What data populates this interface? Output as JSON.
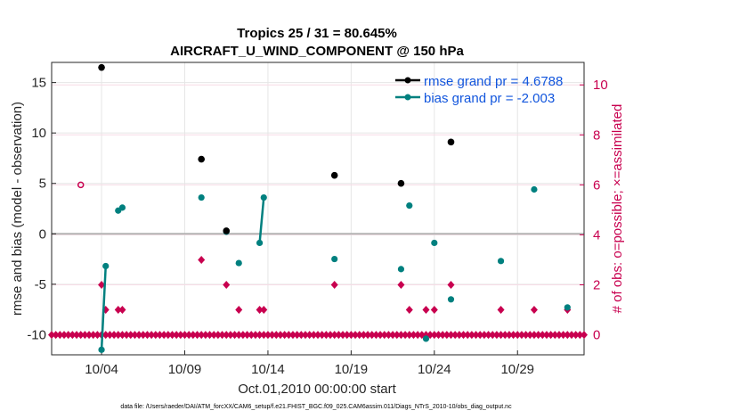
{
  "chart_data": {
    "type": "scatter",
    "title_line1": "Tropics 25 / 31 = 80.645%",
    "title_line2": "AIRCRAFT_U_WIND_COMPONENT @ 150 hPa",
    "xlabel": "Oct.01,2010 00:00:00 start",
    "ylabel": "rmse and bias (model - observation)",
    "y2label": "# of obs: o=possible; ×=assimilated",
    "footer": "data file: /Users/raeder/DAI/ATM_forcXX/CAM6_setup/f.e21.FHIST_BGC.f09_025.CAM6assim.011/Diags_NTrS_2010-10/obs_diag_output.nc",
    "xlim": [
      1,
      33
    ],
    "ylim": [
      -12,
      17
    ],
    "y2lim": [
      -0.8,
      10.9
    ],
    "xticks": [
      4,
      9,
      14,
      19,
      24,
      29
    ],
    "xtick_labels": [
      "10/04",
      "10/09",
      "10/14",
      "10/19",
      "10/24",
      "10/29"
    ],
    "yticks": [
      -10,
      -5,
      0,
      5,
      10,
      15
    ],
    "ytick_labels": [
      "-10",
      "-5",
      "0",
      "5",
      "10",
      "15"
    ],
    "y2ticks": [
      0,
      2,
      4,
      6,
      8,
      10
    ],
    "y2tick_labels": [
      "0",
      "2",
      "4",
      "6",
      "8",
      "10"
    ],
    "grid": true,
    "legend_placement": "top-right",
    "colors": {
      "rmse": "#000000",
      "bias": "#00807f",
      "obs": "#c8004f",
      "zero_line": "#b3b3b3",
      "legend_text": "#1155dd"
    },
    "series": [
      {
        "name": "rmse grand pr = 4.6788",
        "x": [
          4.0,
          10.0,
          11.5,
          18.0,
          22.0,
          25.0
        ],
        "y": [
          16.5,
          7.4,
          0.3,
          5.8,
          5.0,
          9.1
        ]
      },
      {
        "name": "bias grand pr = -2.003",
        "x": [
          4.0,
          4.25,
          5.0,
          5.25,
          10.0,
          11.5,
          12.25,
          13.5,
          13.75,
          18.0,
          22.0,
          22.5,
          23.5,
          24.0,
          25.0,
          28.0,
          30.0,
          32.0
        ],
        "y": [
          -11.5,
          -3.2,
          2.3,
          2.6,
          3.6,
          0.2,
          -2.9,
          -0.9,
          3.6,
          -2.5,
          -3.5,
          2.8,
          -10.4,
          -0.9,
          -6.5,
          -2.7,
          4.4,
          -7.3
        ],
        "segments": [
          [
            4.0,
            4.25
          ],
          [
            13.5,
            13.75
          ]
        ]
      },
      {
        "name": "assimilated",
        "x": [
          1.0,
          1.25,
          1.5,
          1.75,
          2.0,
          2.25,
          2.5,
          2.75,
          3.0,
          3.25,
          3.5,
          3.75,
          4.0,
          4.0,
          4.25,
          4.25,
          4.5,
          4.75,
          5.0,
          5.0,
          5.25,
          5.25,
          5.5,
          5.75,
          6.0,
          6.25,
          6.5,
          6.75,
          7.0,
          7.25,
          7.5,
          7.75,
          8.0,
          8.25,
          8.5,
          8.75,
          9.0,
          9.25,
          9.5,
          9.75,
          10.0,
          10.0,
          10.25,
          10.5,
          10.75,
          11.0,
          11.25,
          11.5,
          11.5,
          11.75,
          12.0,
          12.25,
          12.25,
          12.5,
          12.75,
          13.0,
          13.25,
          13.5,
          13.5,
          13.75,
          13.75,
          14.0,
          14.25,
          14.5,
          14.75,
          15.0,
          15.25,
          15.5,
          15.75,
          16.0,
          16.25,
          16.5,
          16.75,
          17.0,
          17.25,
          17.5,
          17.75,
          18.0,
          18.0,
          18.25,
          18.5,
          18.75,
          19.0,
          19.25,
          19.5,
          19.75,
          20.0,
          20.25,
          20.5,
          20.75,
          21.0,
          21.25,
          21.5,
          21.75,
          22.0,
          22.0,
          22.25,
          22.5,
          22.5,
          22.75,
          23.0,
          23.25,
          23.5,
          23.5,
          23.75,
          24.0,
          24.0,
          24.25,
          24.5,
          24.75,
          25.0,
          25.0,
          25.25,
          25.5,
          25.75,
          26.0,
          26.25,
          26.5,
          26.75,
          27.0,
          27.25,
          27.5,
          27.75,
          28.0,
          28.0,
          28.25,
          28.5,
          28.75,
          29.0,
          29.25,
          29.5,
          29.75,
          30.0,
          30.0,
          30.25,
          30.5,
          30.75,
          31.0,
          31.25,
          31.5,
          31.75,
          32.0,
          32.0,
          32.25,
          32.5,
          32.75,
          33.0
        ],
        "y": [
          0,
          0,
          0,
          0,
          0,
          0,
          0,
          0,
          0,
          0,
          0,
          0,
          0,
          2,
          0,
          1,
          0,
          0,
          0,
          1,
          0,
          1,
          0,
          0,
          0,
          0,
          0,
          0,
          0,
          0,
          0,
          0,
          0,
          0,
          0,
          0,
          0,
          0,
          0,
          0,
          0,
          3,
          0,
          0,
          0,
          0,
          0,
          0,
          2,
          0,
          0,
          0,
          1,
          0,
          0,
          0,
          0,
          0,
          1,
          0,
          1,
          0,
          0,
          0,
          0,
          0,
          0,
          0,
          0,
          0,
          0,
          0,
          0,
          0,
          0,
          0,
          0,
          0,
          2,
          0,
          0,
          0,
          0,
          0,
          0,
          0,
          0,
          0,
          0,
          0,
          0,
          0,
          0,
          0,
          0,
          2,
          0,
          0,
          1,
          0,
          0,
          0,
          0,
          1,
          0,
          0,
          1,
          0,
          0,
          0,
          0,
          2,
          0,
          0,
          0,
          0,
          0,
          0,
          0,
          0,
          0,
          0,
          0,
          0,
          1,
          0,
          0,
          0,
          0,
          0,
          0,
          0,
          0,
          1,
          0,
          0,
          0,
          0,
          0,
          0,
          0,
          0,
          1,
          0,
          0,
          0,
          0
        ]
      },
      {
        "name": "possible",
        "x": [
          2.75
        ],
        "y": [
          6
        ]
      }
    ]
  }
}
